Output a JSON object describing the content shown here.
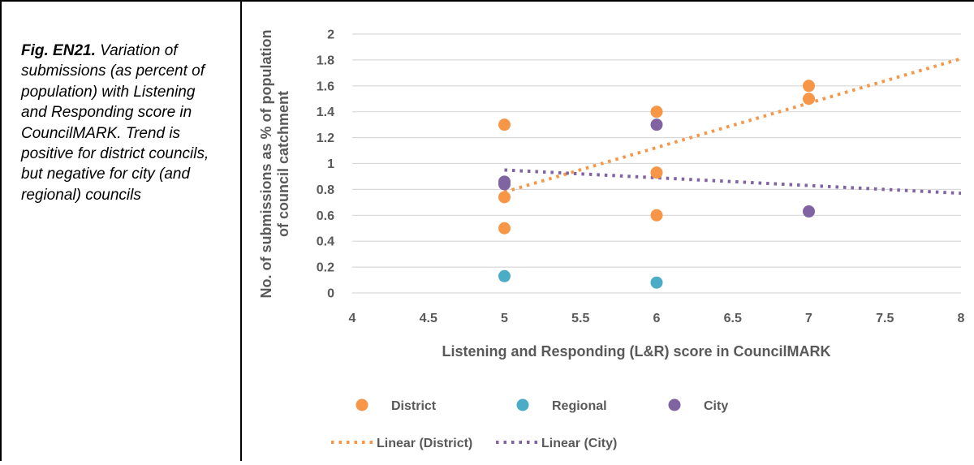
{
  "caption": {
    "label": "Fig. EN21.",
    "text": " Variation of submissions (as percent of population) with Listening and Responding score in CouncilMARK. Trend is positive for district councils, but negative for city (and regional) councils"
  },
  "colors": {
    "district": "#F79646",
    "regional": "#4BACC6",
    "city": "#8064A2",
    "grid": "#D9D9D9",
    "axis_text": "#595959",
    "border": "#000000"
  },
  "chart_data": {
    "type": "scatter",
    "title": "",
    "xlabel": "Listening and Responding (L&R) score in CouncilMARK",
    "ylabel_lines": [
      "No. of submissions as % of population",
      "of council catchment"
    ],
    "xlim": [
      4,
      8
    ],
    "ylim": [
      0,
      2
    ],
    "x_ticks": [
      "4",
      "4.5",
      "5",
      "5.5",
      "6",
      "6.5",
      "7",
      "7.5",
      "8"
    ],
    "y_ticks": [
      "0",
      "0.2",
      "0.4",
      "0.6",
      "0.8",
      "1",
      "1.2",
      "1.4",
      "1.6",
      "1.8",
      "2"
    ],
    "grid": "horizontal",
    "legend_position": "bottom",
    "series": [
      {
        "name": "District",
        "color": "#F79646",
        "points": [
          {
            "x": 5,
            "y": 1.3
          },
          {
            "x": 5,
            "y": 0.74
          },
          {
            "x": 5,
            "y": 0.5
          },
          {
            "x": 6,
            "y": 1.4
          },
          {
            "x": 6,
            "y": 0.93
          },
          {
            "x": 6,
            "y": 0.6
          },
          {
            "x": 7,
            "y": 1.6
          },
          {
            "x": 7,
            "y": 1.5
          }
        ]
      },
      {
        "name": "Regional",
        "color": "#4BACC6",
        "points": [
          {
            "x": 5,
            "y": 0.13
          },
          {
            "x": 6,
            "y": 0.08
          }
        ]
      },
      {
        "name": "City",
        "color": "#8064A2",
        "points": [
          {
            "x": 5,
            "y": 0.86
          },
          {
            "x": 5,
            "y": 0.84
          },
          {
            "x": 6,
            "y": 1.3
          },
          {
            "x": 7,
            "y": 0.63
          }
        ]
      }
    ],
    "trendlines": [
      {
        "name": "Linear (District)",
        "color": "#F79646",
        "x": [
          5,
          8
        ],
        "y": [
          0.78,
          1.81
        ]
      },
      {
        "name": "Linear (City)",
        "color": "#8064A2",
        "x": [
          5,
          8
        ],
        "y": [
          0.95,
          0.77
        ]
      }
    ]
  }
}
